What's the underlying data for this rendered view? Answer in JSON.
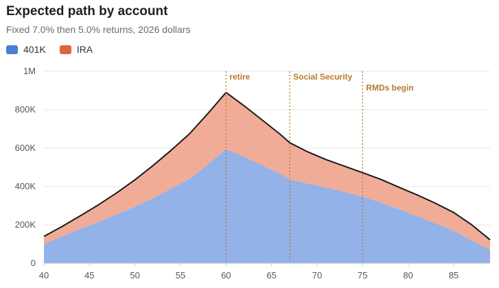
{
  "chart_data": {
    "type": "area",
    "title": "Expected path by account",
    "subtitle": "Fixed 7.0% then 5.0% returns, 2026 dollars",
    "x": [
      40,
      42,
      44,
      46,
      48,
      50,
      52,
      54,
      56,
      58,
      60,
      62,
      64,
      66,
      67,
      69,
      71,
      73,
      75,
      77,
      79,
      81,
      83,
      85,
      87,
      89
    ],
    "series": [
      {
        "name": "401K",
        "color": "#4a7fd4",
        "fill": "#92b2e8",
        "values": [
          100000,
          140000,
          180000,
          215000,
          255000,
          295000,
          340000,
          390000,
          440000,
          515000,
          595000,
          555000,
          510000,
          465000,
          438000,
          415000,
          395000,
          372000,
          348000,
          316000,
          282000,
          245000,
          208000,
          170000,
          118000,
          70000
        ]
      },
      {
        "name": "IRA",
        "color": "#e0663a",
        "fill": "#f0ac96",
        "values": [
          40000,
          52000,
          68000,
          90000,
          112000,
          140000,
          170000,
          200000,
          235000,
          265000,
          295000,
          265000,
          235000,
          205000,
          190000,
          165000,
          145000,
          134000,
          124000,
          121000,
          114000,
          111000,
          105000,
          95000,
          82000,
          52000
        ]
      }
    ],
    "markers": [
      {
        "x": 60,
        "label": "retire"
      },
      {
        "x": 67,
        "label": "Social Security"
      },
      {
        "x": 75,
        "label": "RMDs begin"
      }
    ],
    "xlim": [
      40,
      89
    ],
    "ylim": [
      0,
      1000000
    ],
    "xticks": [
      40,
      45,
      50,
      55,
      60,
      65,
      70,
      75,
      80,
      85
    ],
    "yticks": [
      {
        "value": 0,
        "label": "0"
      },
      {
        "value": 200000,
        "label": "200K"
      },
      {
        "value": 400000,
        "label": "400K"
      },
      {
        "value": 600000,
        "label": "600K"
      },
      {
        "value": 800000,
        "label": "800K"
      },
      {
        "value": 1000000,
        "label": "1M"
      }
    ],
    "grid": true,
    "legend_position": "top-left"
  }
}
